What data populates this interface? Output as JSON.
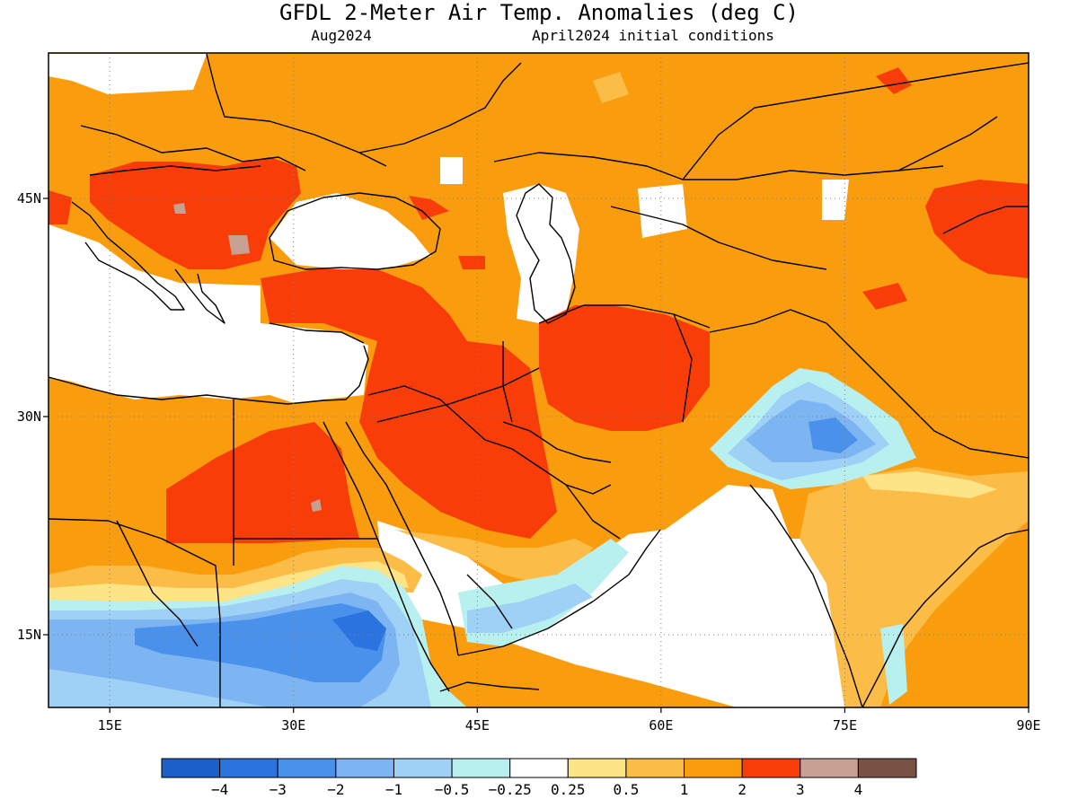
{
  "title": "GFDL 2-Meter Air Temp. Anomalies (deg C)",
  "subtitle_left": "Aug2024",
  "subtitle_right": "April2024 initial conditions",
  "map": {
    "lon_range": [
      10,
      90
    ],
    "lat_range": [
      10,
      55
    ],
    "lon_ticks": [
      {
        "value": 15,
        "label": "15E"
      },
      {
        "value": 30,
        "label": "30E"
      },
      {
        "value": 45,
        "label": "45E"
      },
      {
        "value": 60,
        "label": "60E"
      },
      {
        "value": 75,
        "label": "75E"
      },
      {
        "value": 90,
        "label": "90E"
      }
    ],
    "lat_ticks": [
      {
        "value": 45,
        "label": "45N"
      },
      {
        "value": 30,
        "label": "30N"
      },
      {
        "value": 15,
        "label": "15N"
      }
    ]
  },
  "colorbar": {
    "colors": [
      "#1d5fc8",
      "#2b74e0",
      "#4a91ec",
      "#7db4f2",
      "#9fd0f6",
      "#b8f0f0",
      "#ffffff",
      "#fde486",
      "#fbbd47",
      "#f99d0e",
      "#f93d08",
      "#c8a091",
      "#7a5244"
    ],
    "labels": [
      "−4",
      "−3",
      "−2",
      "−1",
      "−0.5",
      "−0.25",
      "0.25",
      "0.5",
      "1",
      "2",
      "3",
      "4"
    ]
  }
}
